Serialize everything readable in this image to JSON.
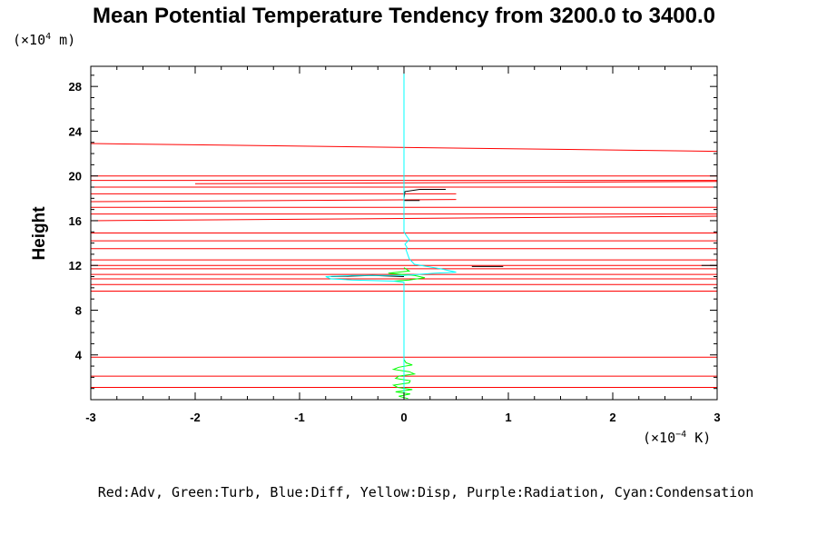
{
  "chart_data": {
    "type": "line",
    "title": "Mean Potential Temperature Tendency from 3200.0 to 3400.0",
    "ylabel": "Height",
    "y_unit": {
      "prefix": "(×10",
      "exp": "4",
      "suffix": " m)"
    },
    "x_unit": {
      "prefix": "(×10",
      "exp": "−4",
      "suffix": " K)"
    },
    "xlim": [
      -3,
      3
    ],
    "ylim": [
      0,
      29.8
    ],
    "x_ticks": [
      -3,
      -2,
      -1,
      0,
      1,
      2,
      3
    ],
    "x_tick_labels": [
      "-3",
      "-2",
      "-1",
      "0",
      "1",
      "2",
      "3"
    ],
    "y_ticks": [
      4,
      8,
      12,
      16,
      20,
      24,
      28
    ],
    "y_tick_labels": [
      "4",
      "8",
      "12",
      "16",
      "20",
      "24",
      "28"
    ],
    "legend_text": "Red:Adv, Green:Turb, Blue:Diff, Yellow:Disp, Purple:Radiation, Cyan:Condensation",
    "colors": {
      "adv": "#ff0000",
      "adv_dark": "#cc0000",
      "turb": "#00ff00",
      "diff": "#000000",
      "disp": "#ffff00",
      "condensation": "#00ffff",
      "axis": "#000000"
    },
    "series": [
      {
        "name": "Adv",
        "color": "#ff0000",
        "segments": [
          [
            [
              -3,
              22.9
            ],
            [
              3,
              22.2
            ]
          ],
          [
            [
              -3,
              20.0
            ],
            [
              3,
              20.0
            ]
          ],
          [
            [
              -3,
              19.6
            ],
            [
              3,
              19.6
            ]
          ],
          [
            [
              -2.0,
              19.3
            ],
            [
              3,
              19.5
            ]
          ],
          [
            [
              -3,
              19.0
            ],
            [
              3,
              19.0
            ]
          ],
          [
            [
              -3,
              18.4
            ],
            [
              0.5,
              18.4
            ]
          ],
          [
            [
              -3,
              17.7
            ],
            [
              0.5,
              17.9
            ]
          ],
          [
            [
              -3,
              17.2
            ],
            [
              3,
              17.2
            ]
          ],
          [
            [
              -3,
              16.6
            ],
            [
              3,
              16.6
            ]
          ],
          [
            [
              -3,
              16.0
            ],
            [
              3,
              16.4
            ]
          ],
          [
            [
              -3,
              14.9
            ],
            [
              3,
              14.9
            ]
          ],
          [
            [
              -3,
              14.2
            ],
            [
              3,
              14.2
            ]
          ],
          [
            [
              -3,
              13.5
            ],
            [
              3,
              13.5
            ]
          ],
          [
            [
              -3,
              12.5
            ],
            [
              3,
              12.5
            ]
          ],
          [
            [
              -3,
              12.0
            ],
            [
              3,
              12.0
            ]
          ],
          [
            [
              -3,
              11.7
            ],
            [
              3,
              11.7
            ]
          ],
          [
            [
              -3,
              11.2
            ],
            [
              3,
              11.2
            ]
          ],
          [
            [
              -3,
              10.8
            ],
            [
              3,
              10.8
            ]
          ],
          [
            [
              -3,
              10.3
            ],
            [
              3,
              10.3
            ]
          ],
          [
            [
              -3,
              9.7
            ],
            [
              3,
              9.7
            ]
          ],
          [
            [
              -3,
              3.8
            ],
            [
              3,
              3.8
            ]
          ],
          [
            [
              -3,
              2.1
            ],
            [
              3,
              2.1
            ]
          ],
          [
            [
              -3,
              1.1
            ],
            [
              3,
              1.1
            ]
          ]
        ]
      },
      {
        "name": "Turb",
        "color": "#00ff00",
        "segments": [
          [
            [
              0,
              3.6
            ],
            [
              0.02,
              3.3
            ],
            [
              0.08,
              3.1
            ],
            [
              -0.05,
              2.9
            ],
            [
              -0.1,
              2.7
            ],
            [
              0.05,
              2.5
            ],
            [
              0.1,
              2.3
            ],
            [
              -0.05,
              2.1
            ],
            [
              -0.08,
              1.9
            ],
            [
              0.06,
              1.7
            ],
            [
              0.05,
              1.5
            ],
            [
              -0.1,
              1.3
            ],
            [
              -0.06,
              1.1
            ],
            [
              0.08,
              0.9
            ],
            [
              -0.08,
              0.7
            ],
            [
              0.06,
              0.5
            ],
            [
              -0.05,
              0.3
            ],
            [
              0.04,
              0.1
            ]
          ],
          [
            [
              0,
              11.8
            ],
            [
              0.05,
              11.5
            ],
            [
              -0.15,
              11.3
            ],
            [
              0.1,
              11.1
            ],
            [
              0.2,
              10.9
            ],
            [
              0.05,
              10.7
            ],
            [
              -0.1,
              10.6
            ]
          ]
        ]
      },
      {
        "name": "Diff",
        "color": "#000000",
        "segments": [
          [
            [
              0,
              18.0
            ],
            [
              0.01,
              18.6
            ],
            [
              0.15,
              18.8
            ],
            [
              0.4,
              18.8
            ]
          ],
          [
            [
              0,
              17.8
            ],
            [
              0.15,
              17.8
            ]
          ],
          [
            [
              0.65,
              11.9
            ],
            [
              0.95,
              11.9
            ]
          ],
          [
            [
              2.85,
              12.0
            ],
            [
              3,
              12.0
            ]
          ],
          [
            [
              -0.7,
              11.0
            ],
            [
              -0.3,
              11.1
            ],
            [
              0,
              11.0
            ]
          ]
        ]
      },
      {
        "name": "Condensation",
        "color": "#00ffff",
        "segments": [
          [
            [
              0,
              0
            ],
            [
              0,
              10.5
            ],
            [
              -0.1,
              10.6
            ],
            [
              -0.5,
              10.7
            ],
            [
              -0.7,
              10.8
            ],
            [
              -0.75,
              11.0
            ],
            [
              -0.5,
              11.1
            ],
            [
              0,
              11.1
            ],
            [
              0.3,
              11.3
            ],
            [
              0.5,
              11.4
            ],
            [
              0.35,
              11.7
            ],
            [
              0.1,
              12.1
            ],
            [
              0.05,
              12.6
            ],
            [
              0.02,
              13.4
            ],
            [
              0.03,
              13.6
            ],
            [
              0.01,
              13.9
            ],
            [
              0.05,
              14.3
            ],
            [
              0.02,
              14.7
            ],
            [
              0,
              15.0
            ],
            [
              0,
              29.8
            ]
          ]
        ]
      }
    ]
  }
}
